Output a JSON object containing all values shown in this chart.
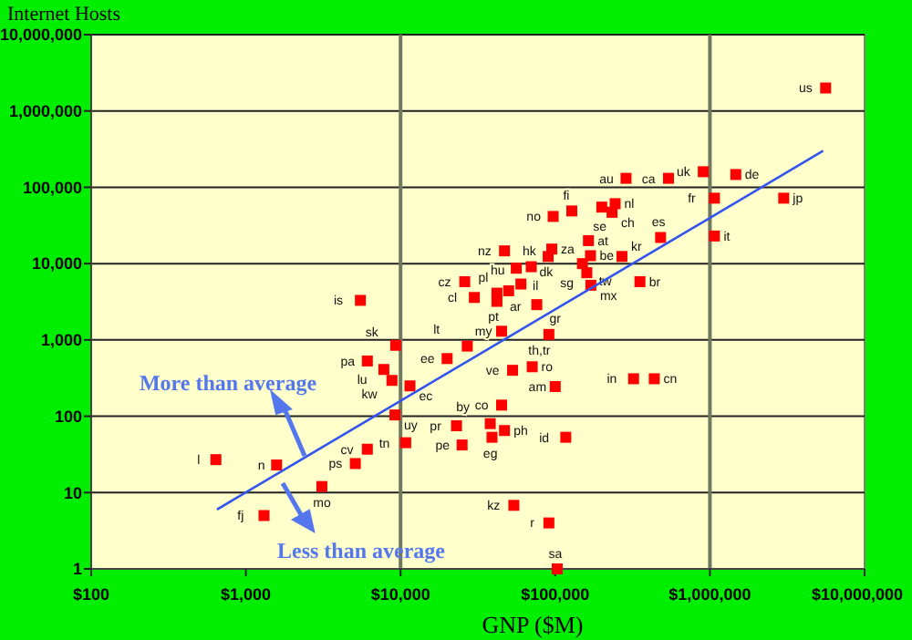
{
  "chart_data": {
    "type": "scatter",
    "xlabel": "GNP ($M)",
    "ylabel": "Internet Hosts",
    "log": "xy",
    "xlim": [
      100,
      10000000
    ],
    "ylim": [
      1,
      10000000
    ],
    "xticks": [
      {
        "value": 100,
        "label": "$100"
      },
      {
        "value": 1000,
        "label": "$1,000"
      },
      {
        "value": 10000,
        "label": "$10,000"
      },
      {
        "value": 100000,
        "label": "$100,000"
      },
      {
        "value": 1000000,
        "label": "$1,000,000"
      },
      {
        "value": 10000000,
        "label": "$10,000,000"
      }
    ],
    "yticks": [
      1,
      10,
      100,
      {
        "value": 1000,
        "label": "1,000"
      },
      {
        "value": 10000,
        "label": "10,000"
      },
      {
        "value": 100000,
        "label": "100,000"
      },
      {
        "value": 1000000,
        "label": "1,000,000"
      },
      {
        "value": 10000000,
        "label": "10,000,000"
      }
    ],
    "grid": "y",
    "marker": "square",
    "ref_lines": [
      {
        "axis": "x",
        "value": 10000,
        "color": "#707860"
      },
      {
        "axis": "x",
        "value": 1000000,
        "color": "#707860"
      }
    ],
    "series": [
      {
        "type": "scatter",
        "color": "#ff0000",
        "x": [
          5600000,
          906000,
          1470000,
          540000,
          287000,
          1070000,
          3000000,
          1070000,
          128000,
          200000,
          244000,
          233000,
          97000,
          95000,
          164000,
          90000,
          47000,
          150000,
          169000,
          270000,
          480000,
          56000,
          70000,
          160000,
          170000,
          353000,
          60000,
          26000,
          42000,
          30000,
          42000,
          50000,
          76000,
          5500,
          45000,
          91000,
          27000,
          20000,
          9300,
          6100,
          7800,
          8800,
          11500,
          9200,
          10800,
          6100,
          5100,
          1580,
          3100,
          1310,
          640,
          23000,
          25000,
          38000,
          39000,
          47000,
          117000,
          45000,
          53000,
          71000,
          100000,
          321000,
          437000,
          54000,
          91000,
          103000
        ],
        "values": [
          2000000,
          160000,
          147000,
          131000,
          131000,
          72000,
          72000,
          23000,
          49000,
          55000,
          61000,
          47000,
          41500,
          15500,
          20000,
          12400,
          14700,
          10000,
          12700,
          12400,
          22000,
          8700,
          9100,
          7600,
          5200,
          5800,
          5400,
          5800,
          4100,
          3600,
          3200,
          4400,
          2900,
          3300,
          1300,
          1180,
          830,
          570,
          850,
          530,
          410,
          295,
          250,
          104,
          45,
          37,
          24,
          23,
          12,
          5,
          27,
          75,
          42,
          80,
          53,
          65,
          53,
          140,
          400,
          445,
          245,
          310,
          310,
          6.8,
          4,
          1
        ]
      },
      {
        "type": "line",
        "marker": "none",
        "color": "#3355ee",
        "x": [
          650,
          5400000
        ],
        "values": [
          6,
          300000
        ]
      }
    ],
    "annotations": [
      "More than average",
      "Less than average",
      {
        "text": "us",
        "x": 5600000,
        "y": 2000000
      },
      {
        "text": "uk",
        "x": 906000,
        "y": 160000
      },
      {
        "text": "de",
        "x": 1470000,
        "y": 147000
      },
      {
        "text": "ca",
        "x": 540000,
        "y": 131000
      },
      {
        "text": "au",
        "x": 287000,
        "y": 131000
      },
      {
        "text": "fr",
        "x": 1070000,
        "y": 72000
      },
      {
        "text": "jp",
        "x": 3000000,
        "y": 72000
      },
      {
        "text": "it",
        "x": 1070000,
        "y": 23000
      },
      {
        "text": "fi",
        "x": 128000,
        "y": 49000
      },
      {
        "text": "se",
        "x": 200000,
        "y": 55000
      },
      {
        "text": "nl",
        "x": 244000,
        "y": 61000
      },
      {
        "text": "ch",
        "x": 233000,
        "y": 47000
      },
      {
        "text": "no",
        "x": 97000,
        "y": 41500
      },
      {
        "text": "za",
        "x": 95000,
        "y": 15500
      },
      {
        "text": "at",
        "x": 164000,
        "y": 20000
      },
      {
        "text": "dk",
        "x": 90000,
        "y": 12400
      },
      {
        "text": "nz",
        "x": 47000,
        "y": 14700
      },
      {
        "text": "tw",
        "x": 150000,
        "y": 10000
      },
      {
        "text": "be",
        "x": 169000,
        "y": 12700
      },
      {
        "text": "kr",
        "x": 270000,
        "y": 12400
      },
      {
        "text": "es",
        "x": 480000,
        "y": 22000
      },
      {
        "text": "il",
        "x": 56000,
        "y": 8700
      },
      {
        "text": "hk",
        "x": 70000,
        "y": 9100
      },
      {
        "text": "sg",
        "x": 160000,
        "y": 7600
      },
      {
        "text": "mx",
        "x": 170000,
        "y": 5200
      },
      {
        "text": "br",
        "x": 353000,
        "y": 5800
      },
      {
        "text": "hu",
        "x": 60000,
        "y": 5400
      },
      {
        "text": "cz",
        "x": 26000,
        "y": 5800
      },
      {
        "text": "ar",
        "x": 42000,
        "y": 4100
      },
      {
        "text": "cl",
        "x": 30000,
        "y": 3600
      },
      {
        "text": "pt",
        "x": 42000,
        "y": 3200
      },
      {
        "text": "pl",
        "x": 50000,
        "y": 4400
      },
      {
        "text": "gr",
        "x": 76000,
        "y": 2900
      },
      {
        "text": "is",
        "x": 5500,
        "y": 3300
      },
      {
        "text": "my",
        "x": 45000,
        "y": 1300
      },
      {
        "text": "th,tr",
        "x": 91000,
        "y": 1180
      },
      {
        "text": "lt",
        "x": 27000,
        "y": 830
      },
      {
        "text": "ee",
        "x": 20000,
        "y": 570
      },
      {
        "text": "sk",
        "x": 9300,
        "y": 850
      },
      {
        "text": "pa",
        "x": 6100,
        "y": 530
      },
      {
        "text": "lu",
        "x": 7800,
        "y": 410
      },
      {
        "text": "kw",
        "x": 8800,
        "y": 295
      },
      {
        "text": "ec",
        "x": 11500,
        "y": 250
      },
      {
        "text": "uy",
        "x": 9200,
        "y": 104
      },
      {
        "text": "tn",
        "x": 10800,
        "y": 45
      },
      {
        "text": "cv",
        "x": 6100,
        "y": 37
      },
      {
        "text": "ps",
        "x": 5100,
        "y": 24
      },
      {
        "text": "n",
        "x": 1580,
        "y": 23
      },
      {
        "text": "mo",
        "x": 3100,
        "y": 12
      },
      {
        "text": "fj",
        "x": 1310,
        "y": 5
      },
      {
        "text": "l",
        "x": 640,
        "y": 27
      },
      {
        "text": "pr",
        "x": 23000,
        "y": 75
      },
      {
        "text": "pe",
        "x": 25000,
        "y": 42
      },
      {
        "text": "by",
        "x": 38000,
        "y": 80
      },
      {
        "text": "eg",
        "x": 39000,
        "y": 53
      },
      {
        "text": "ph",
        "x": 47000,
        "y": 65
      },
      {
        "text": "id",
        "x": 117000,
        "y": 53
      },
      {
        "text": "co",
        "x": 45000,
        "y": 140
      },
      {
        "text": "ve",
        "x": 53000,
        "y": 400
      },
      {
        "text": "ro",
        "x": 71000,
        "y": 445
      },
      {
        "text": "am",
        "x": 100000,
        "y": 245
      },
      {
        "text": "in",
        "x": 321000,
        "y": 310
      },
      {
        "text": "cn",
        "x": 437000,
        "y": 310
      },
      {
        "text": "kz",
        "x": 54000,
        "y": 6.8
      },
      {
        "text": "r",
        "x": 91000,
        "y": 4
      },
      {
        "text": "sa",
        "x": 103000,
        "y": 1
      }
    ]
  }
}
